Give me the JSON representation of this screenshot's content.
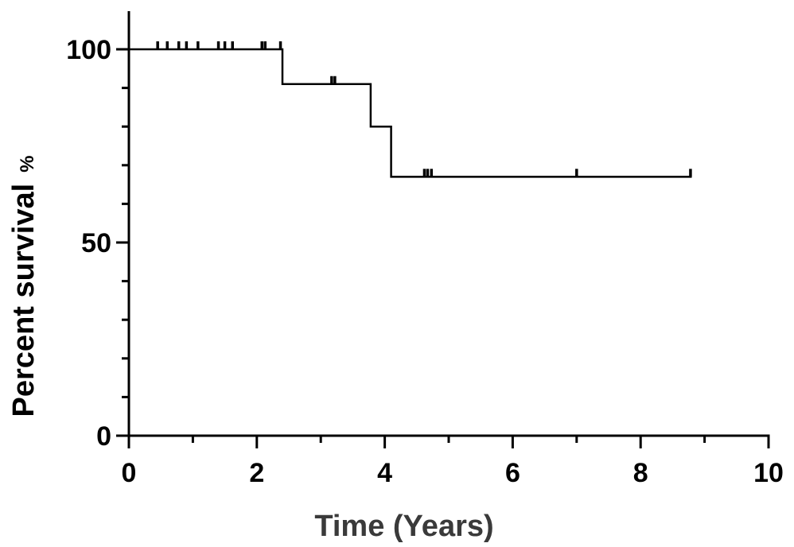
{
  "chart_data": {
    "type": "line",
    "subtype": "kaplan-meier step curve with censor ticks",
    "title": "",
    "xlabel": "Time (Years)",
    "ylabel": "Percent survival",
    "ylabel_unit": "%",
    "xlim": [
      0,
      10
    ],
    "ylim": [
      0,
      100
    ],
    "x_ticks": [
      0,
      2,
      4,
      6,
      8,
      10
    ],
    "y_ticks": [
      0,
      50,
      100
    ],
    "grid": false,
    "legend": "none",
    "line_color": "#000000",
    "steps": [
      {
        "x": 0,
        "y": 100
      },
      {
        "x": 2.4,
        "y": 100
      },
      {
        "x": 2.4,
        "y": 91
      },
      {
        "x": 3.78,
        "y": 91
      },
      {
        "x": 3.78,
        "y": 80
      },
      {
        "x": 4.1,
        "y": 80
      },
      {
        "x": 4.1,
        "y": 67
      },
      {
        "x": 8.8,
        "y": 67
      }
    ],
    "censored": [
      {
        "x": 0.45,
        "y": 100
      },
      {
        "x": 0.6,
        "y": 100
      },
      {
        "x": 0.78,
        "y": 100
      },
      {
        "x": 0.9,
        "y": 100
      },
      {
        "x": 1.08,
        "y": 100
      },
      {
        "x": 1.4,
        "y": 100
      },
      {
        "x": 1.5,
        "y": 100
      },
      {
        "x": 1.62,
        "y": 100
      },
      {
        "x": 2.08,
        "y": 100
      },
      {
        "x": 2.13,
        "y": 100
      },
      {
        "x": 2.37,
        "y": 100
      },
      {
        "x": 3.17,
        "y": 91
      },
      {
        "x": 3.22,
        "y": 91
      },
      {
        "x": 4.62,
        "y": 67
      },
      {
        "x": 4.67,
        "y": 67
      },
      {
        "x": 4.73,
        "y": 67
      },
      {
        "x": 7.0,
        "y": 67
      },
      {
        "x": 8.78,
        "y": 67
      }
    ]
  }
}
